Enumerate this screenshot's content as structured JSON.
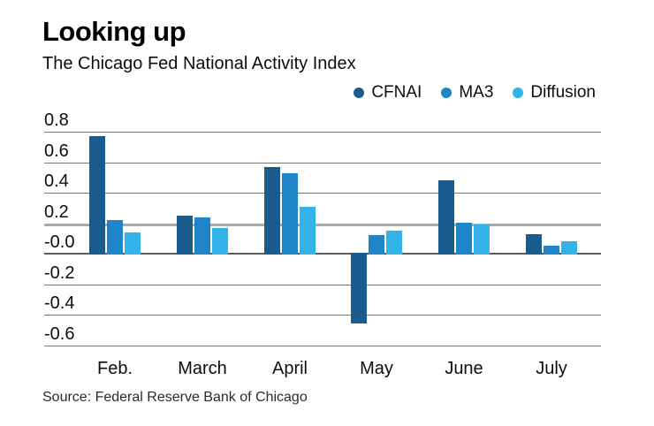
{
  "title": "Looking up",
  "subtitle": "The Chicago Fed National Activity Index",
  "source": "Source: Federal Reserve Bank of Chicago",
  "colors": {
    "cfnai": "#1A5C8E",
    "ma3": "#1F85C9",
    "diffusion": "#33B3EA"
  },
  "chart_data": {
    "type": "bar",
    "title": "Looking up",
    "subtitle": "The Chicago Fed National Activity Index",
    "source": "Source: Federal Reserve Bank of Chicago",
    "categories": [
      "Feb.",
      "March",
      "April",
      "May",
      "June",
      "July"
    ],
    "series": [
      {
        "name": "CFNAI",
        "color": "#1A5C8E",
        "values": [
          0.77,
          0.25,
          0.57,
          -0.45,
          0.48,
          0.13
        ]
      },
      {
        "name": "MA3",
        "color": "#1F85C9",
        "values": [
          0.22,
          0.24,
          0.53,
          0.12,
          0.2,
          0.05
        ]
      },
      {
        "name": "Diffusion",
        "color": "#33B3EA",
        "values": [
          0.14,
          0.17,
          0.31,
          0.15,
          0.19,
          0.08
        ]
      }
    ],
    "xlabel": "",
    "ylabel": "",
    "ylim": [
      -0.6,
      0.8
    ],
    "ytick_step": 0.2,
    "yticks": [
      0.8,
      0.6,
      0.4,
      0.2,
      0,
      -0.2,
      -0.4,
      -0.6
    ],
    "ytick_labels": [
      "0.8",
      "0.6",
      "0.4",
      "0.2",
      "-0.0",
      "-0.2",
      "-0.4",
      "-0.6"
    ],
    "grid": true,
    "legend_position": "top-right",
    "bar_baseline": 0
  }
}
